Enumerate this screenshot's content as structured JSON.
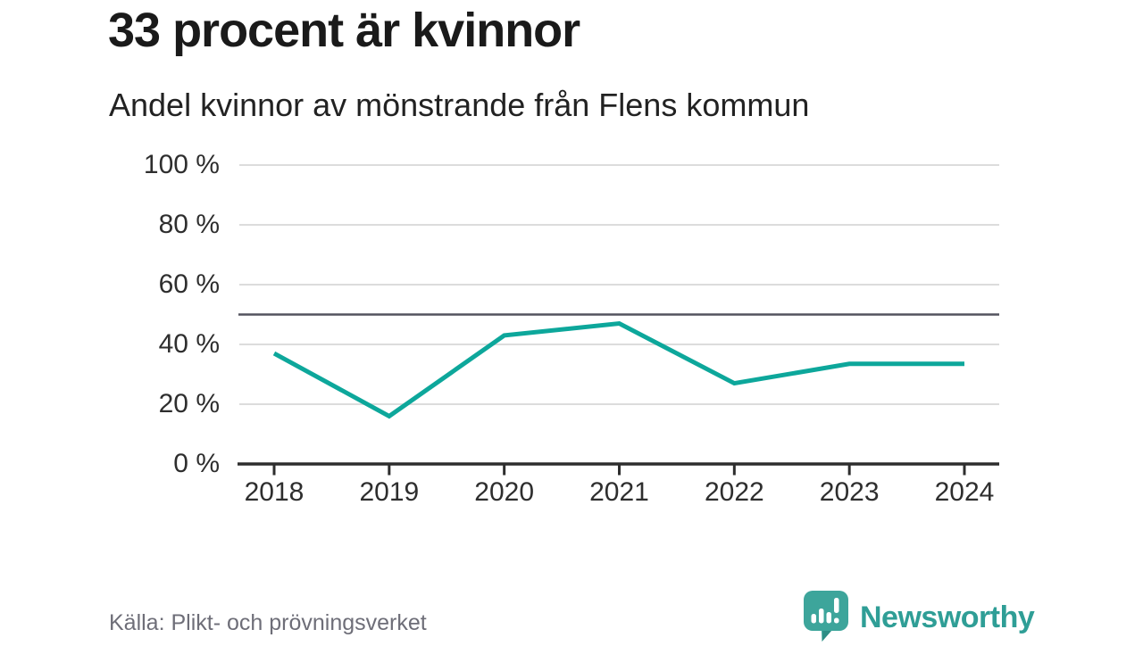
{
  "header": {
    "title": "33 procent är kvinnor",
    "subtitle": "Andel kvinnor av mönstrande från Flens kommun"
  },
  "chart_data": {
    "type": "line",
    "title": "33 procent är kvinnor",
    "subtitle": "Andel kvinnor av mönstrande från Flens kommun",
    "categories": [
      "2018",
      "2019",
      "2020",
      "2021",
      "2022",
      "2023",
      "2024"
    ],
    "series": [
      {
        "name": "Andel kvinnor av mönstrande",
        "values": [
          37,
          16,
          43,
          47,
          27,
          33.5,
          33.5
        ],
        "color": "#0da79b"
      }
    ],
    "xlabel": "",
    "ylabel": "",
    "ylim": [
      0,
      100
    ],
    "yticks": [
      0,
      20,
      40,
      60,
      80,
      100
    ],
    "ytick_suffix": " %",
    "reference_line": {
      "value": 50,
      "color": "#53535f"
    },
    "grid": true,
    "legend_position": "none"
  },
  "footer": {
    "source": "Källa: Plikt- och prövningsverket",
    "brand": "Newsworthy"
  },
  "icons": {
    "logo": "newsworthy-speech-bubble-barchart-icon"
  },
  "colors": {
    "accent": "#0da79b",
    "brand_teal": "#2f9e96",
    "logo_teal": "#3da59b",
    "grid": "#dcdcdc",
    "axis": "#2d2d2d",
    "reference": "#53535f",
    "title_text": "#1a1a1a",
    "muted_text": "#6e6e78"
  }
}
